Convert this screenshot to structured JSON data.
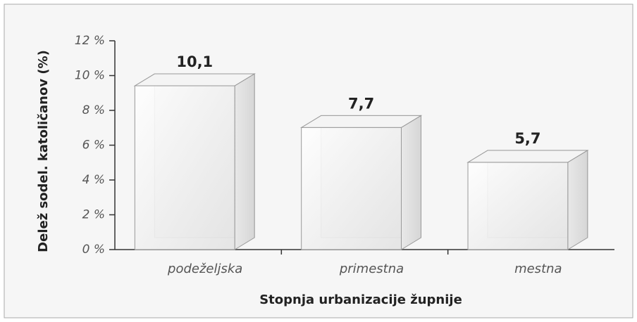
{
  "chart_data": {
    "type": "bar3d",
    "categories": [
      "podeželjska",
      "primestna",
      "mestna"
    ],
    "values": [
      10.1,
      7.7,
      5.7
    ],
    "value_labels": [
      "10,1",
      "7,7",
      "5,7"
    ],
    "xlabel": "Stopnja urbanizacije župnije",
    "ylabel": "Delež sodel. katoličanov (%)",
    "ylim": [
      0,
      12
    ],
    "yticks": [
      {
        "value": 0,
        "label": "0 %"
      },
      {
        "value": 2,
        "label": "2 %"
      },
      {
        "value": 4,
        "label": "4 %"
      },
      {
        "value": 6,
        "label": "6 %"
      },
      {
        "value": 8,
        "label": "8 %"
      },
      {
        "value": 10,
        "label": "10 %"
      },
      {
        "value": 12,
        "label": "12 %"
      }
    ]
  }
}
